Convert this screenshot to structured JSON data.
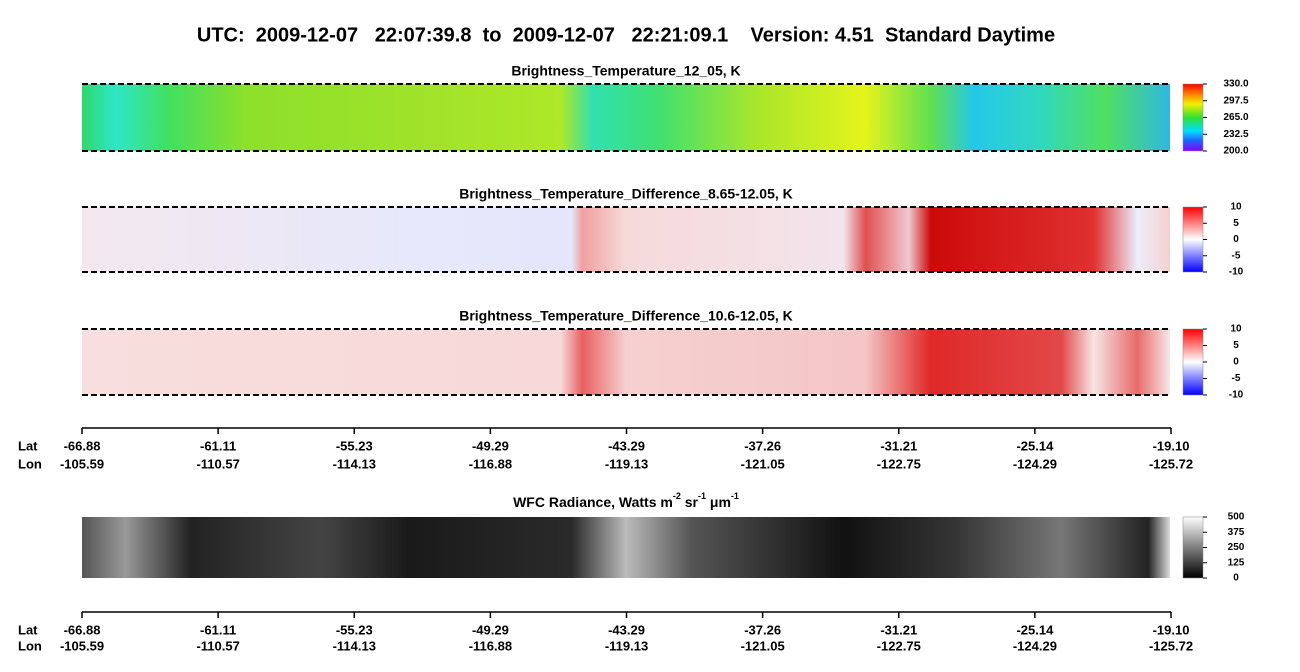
{
  "title": "UTC:  2009-12-07   22:07:39.8  to  2009-12-07   22:21:09.1    Version: 4.51  Standard Daytime",
  "panels": [
    {
      "title": "Brightness_Temperature_12_05, K",
      "kind": "rainbow",
      "range": [
        200,
        330
      ],
      "ticks": [
        {
          "value": 330,
          "label": "330.0"
        },
        {
          "value": 297.5,
          "label": "297.5"
        },
        {
          "value": 265,
          "label": "265.0"
        },
        {
          "value": 232.5,
          "label": "232.5"
        },
        {
          "value": 200,
          "label": "200.0"
        }
      ]
    },
    {
      "title": "Brightness_Temperature_Difference_8.65-12.05, K",
      "kind": "diverging",
      "range": [
        -10,
        10
      ],
      "ticks": [
        10,
        5,
        0,
        -5,
        -10
      ]
    },
    {
      "title": "Brightness_Temperature_Difference_10.6-12.05, K",
      "kind": "diverging-pink",
      "range": [
        -10,
        10
      ],
      "ticks": [
        10,
        5,
        0,
        -5,
        -10
      ]
    },
    {
      "title_parts": [
        "WFC Radiance, Watts m",
        "-2",
        " sr",
        "-1",
        " μm",
        "-1"
      ],
      "kind": "gray",
      "range": [
        0,
        500
      ],
      "ticks": [
        500,
        375,
        250,
        125,
        0
      ]
    }
  ],
  "axis": {
    "row_labels": [
      "Lat",
      "Lon"
    ],
    "lat": [
      "-66.88",
      "-61.11",
      "-55.23",
      "-49.29",
      "-43.29",
      "-37.26",
      "-31.21",
      "-25.14",
      "-19.10"
    ],
    "lon": [
      "-105.59",
      "-110.57",
      "-114.13",
      "-116.88",
      "-119.13",
      "-121.05",
      "-122.75",
      "-124.29",
      "-125.72"
    ]
  }
}
